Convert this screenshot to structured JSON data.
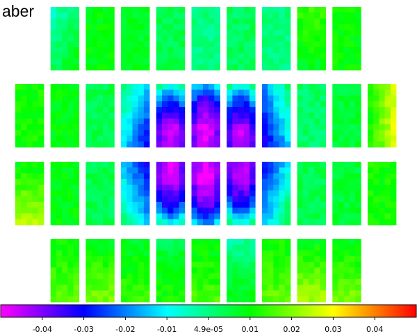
{
  "chart_data": {
    "type": "heatmap",
    "title": "aber",
    "colorbar": {
      "min": -0.05,
      "max": 0.05,
      "ticks": [
        -0.04,
        -0.03,
        -0.02,
        -0.01,
        0.0,
        0.01,
        0.02,
        0.03,
        0.04
      ],
      "tick_labels": [
        "-0.04",
        "-0.03",
        "-0.02",
        "-0.01",
        "4.9e-05",
        "0.01",
        "0.02",
        "0.03",
        "0.04"
      ],
      "colormap": [
        "#ff00ff",
        "#0000ff",
        "#00ffff",
        "#00ff00",
        "#ffff00",
        "#ff0000"
      ]
    },
    "grid": {
      "columns": 11,
      "rows": 4,
      "panel_cells_x": 5,
      "panel_cells_y": 11
    },
    "panels": [
      {
        "row": 0,
        "col": 1,
        "value": 0.002,
        "gx": 0.004,
        "gy": 0.004
      },
      {
        "row": 0,
        "col": 2,
        "value": 0.009,
        "gx": 0.0,
        "gy": 0.0
      },
      {
        "row": 0,
        "col": 3,
        "value": 0.008,
        "gx": 0.0,
        "gy": 0.0
      },
      {
        "row": 0,
        "col": 4,
        "value": 0.004,
        "gx": 0.0,
        "gy": 0.0
      },
      {
        "row": 0,
        "col": 5,
        "value": 0.0,
        "gx": 0.0,
        "gy": 0.0
      },
      {
        "row": 0,
        "col": 6,
        "value": 0.003,
        "gx": 0.0,
        "gy": 0.0
      },
      {
        "row": 0,
        "col": 7,
        "value": 0.0,
        "gx": 0.0,
        "gy": 0.0
      },
      {
        "row": 0,
        "col": 8,
        "value": 0.011,
        "gx": 0.0,
        "gy": -0.003
      },
      {
        "row": 0,
        "col": 9,
        "value": 0.01,
        "gx": 0.0,
        "gy": 0.0
      },
      {
        "row": 1,
        "col": 0,
        "value": 0.011,
        "gx": 0.0,
        "gy": 0.0
      },
      {
        "row": 1,
        "col": 1,
        "value": 0.009,
        "gx": 0.0,
        "gy": 0.0
      },
      {
        "row": 1,
        "col": 2,
        "value": 0.004,
        "gx": 0.0,
        "gy": 0.0
      },
      {
        "row": 1,
        "col": 3,
        "value": -0.014,
        "gx": -0.01,
        "gy": -0.008
      },
      {
        "row": 1,
        "col": 4,
        "value": -0.037,
        "gx": 0.0,
        "gy": -0.02
      },
      {
        "row": 1,
        "col": 5,
        "value": -0.042,
        "gx": 0.0,
        "gy": -0.015
      },
      {
        "row": 1,
        "col": 6,
        "value": -0.036,
        "gx": 0.0,
        "gy": -0.02
      },
      {
        "row": 1,
        "col": 7,
        "value": -0.016,
        "gx": 0.012,
        "gy": -0.008
      },
      {
        "row": 1,
        "col": 8,
        "value": 0.002,
        "gx": 0.0,
        "gy": 0.0
      },
      {
        "row": 1,
        "col": 9,
        "value": 0.006,
        "gx": 0.0,
        "gy": 0.0
      },
      {
        "row": 1,
        "col": 10,
        "value": 0.019,
        "gx": 0.01,
        "gy": 0.0
      },
      {
        "row": 2,
        "col": 0,
        "value": 0.017,
        "gx": 0.0,
        "gy": 0.008
      },
      {
        "row": 2,
        "col": 1,
        "value": 0.009,
        "gx": 0.0,
        "gy": 0.0
      },
      {
        "row": 2,
        "col": 2,
        "value": 0.004,
        "gx": 0.0,
        "gy": 0.0
      },
      {
        "row": 2,
        "col": 3,
        "value": -0.015,
        "gx": -0.01,
        "gy": 0.008
      },
      {
        "row": 2,
        "col": 4,
        "value": -0.038,
        "gx": 0.0,
        "gy": 0.02
      },
      {
        "row": 2,
        "col": 5,
        "value": -0.043,
        "gx": 0.0,
        "gy": 0.015
      },
      {
        "row": 2,
        "col": 6,
        "value": -0.036,
        "gx": 0.0,
        "gy": 0.02
      },
      {
        "row": 2,
        "col": 7,
        "value": -0.013,
        "gx": 0.012,
        "gy": 0.008
      },
      {
        "row": 2,
        "col": 8,
        "value": 0.004,
        "gx": 0.0,
        "gy": 0.0
      },
      {
        "row": 2,
        "col": 9,
        "value": 0.006,
        "gx": 0.0,
        "gy": 0.0
      },
      {
        "row": 2,
        "col": 10,
        "value": 0.011,
        "gx": 0.0,
        "gy": 0.0
      },
      {
        "row": 3,
        "col": 1,
        "value": 0.014,
        "gx": 0.0,
        "gy": 0.004
      },
      {
        "row": 3,
        "col": 2,
        "value": 0.014,
        "gx": 0.0,
        "gy": 0.006
      },
      {
        "row": 3,
        "col": 3,
        "value": 0.011,
        "gx": 0.0,
        "gy": 0.004
      },
      {
        "row": 3,
        "col": 4,
        "value": 0.008,
        "gx": 0.0,
        "gy": 0.004
      },
      {
        "row": 3,
        "col": 5,
        "value": 0.012,
        "gx": 0.0,
        "gy": 0.004
      },
      {
        "row": 3,
        "col": 6,
        "value": 0.004,
        "gx": 0.0,
        "gy": 0.006
      },
      {
        "row": 3,
        "col": 7,
        "value": 0.014,
        "gx": 0.0,
        "gy": 0.004
      },
      {
        "row": 3,
        "col": 8,
        "value": 0.016,
        "gx": 0.0,
        "gy": 0.008
      },
      {
        "row": 3,
        "col": 9,
        "value": 0.014,
        "gx": 0.0,
        "gy": 0.006
      }
    ]
  }
}
